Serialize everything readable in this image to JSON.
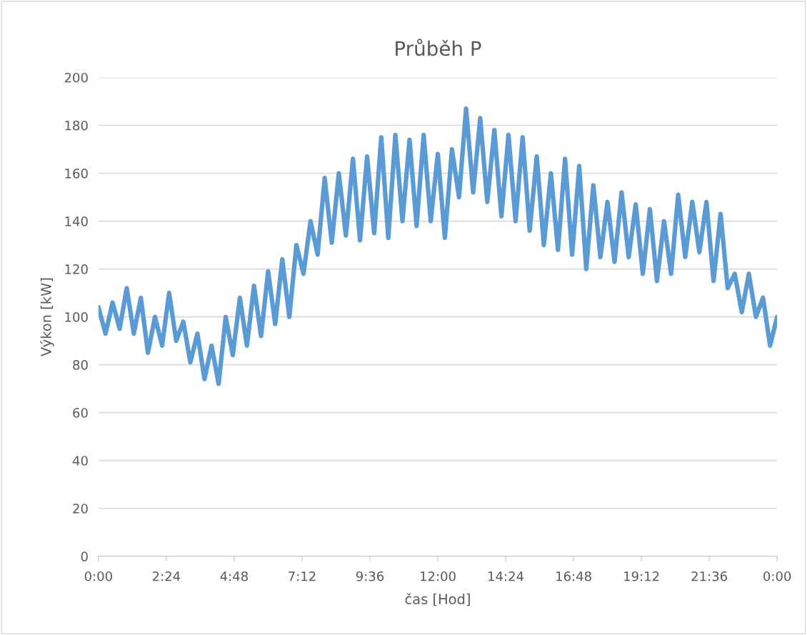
{
  "chart_data": {
    "type": "line",
    "title": "Průběh P",
    "xlabel": "čas [Hod]",
    "ylabel": "Výkon [kW]",
    "x": [
      0,
      0.25,
      0.5,
      0.75,
      1,
      1.25,
      1.5,
      1.75,
      2,
      2.25,
      2.5,
      2.75,
      3,
      3.25,
      3.5,
      3.75,
      4,
      4.25,
      4.5,
      4.75,
      5,
      5.25,
      5.5,
      5.75,
      6,
      6.25,
      6.5,
      6.75,
      7,
      7.25,
      7.5,
      7.75,
      8,
      8.25,
      8.5,
      8.75,
      9,
      9.25,
      9.5,
      9.75,
      10,
      10.25,
      10.5,
      10.75,
      11,
      11.25,
      11.5,
      11.75,
      12,
      12.25,
      12.5,
      12.75,
      13,
      13.25,
      13.5,
      13.75,
      14,
      14.25,
      14.5,
      14.75,
      15,
      15.25,
      15.5,
      15.75,
      16,
      16.25,
      16.5,
      16.75,
      17,
      17.25,
      17.5,
      17.75,
      18,
      18.25,
      18.5,
      18.75,
      19,
      19.25,
      19.5,
      19.75,
      20,
      20.25,
      20.5,
      20.75,
      21,
      21.25,
      21.5,
      21.75,
      22,
      22.25,
      22.5,
      22.75,
      23,
      23.25,
      23.5,
      23.75,
      24
    ],
    "series": [
      {
        "color": "#5b9bd5",
        "values": [
          104,
          93,
          106,
          95,
          112,
          93,
          108,
          85,
          100,
          88,
          110,
          90,
          98,
          81,
          93,
          74,
          88,
          72,
          100,
          84,
          108,
          88,
          113,
          92,
          119,
          97,
          124,
          100,
          130,
          118,
          140,
          126,
          158,
          131,
          160,
          134,
          166,
          132,
          167,
          135,
          175,
          133,
          176,
          140,
          174,
          138,
          176,
          140,
          168,
          133,
          170,
          150,
          187,
          152,
          183,
          148,
          178,
          142,
          176,
          140,
          175,
          136,
          167,
          130,
          160,
          128,
          166,
          126,
          163,
          120,
          155,
          125,
          148,
          123,
          152,
          125,
          147,
          118,
          145,
          115,
          140,
          118,
          151,
          125,
          148,
          127,
          148,
          115,
          143,
          112,
          118,
          102,
          118,
          100,
          108,
          88,
          100
        ]
      }
    ],
    "xlim": [
      0,
      24
    ],
    "xticks": [
      {
        "value": 0,
        "label": "0:00"
      },
      {
        "value": 2.4,
        "label": "2:24"
      },
      {
        "value": 4.8,
        "label": "4:48"
      },
      {
        "value": 7.2,
        "label": "7:12"
      },
      {
        "value": 9.6,
        "label": "9:36"
      },
      {
        "value": 12,
        "label": "12:00"
      },
      {
        "value": 14.4,
        "label": "14:24"
      },
      {
        "value": 16.8,
        "label": "16:48"
      },
      {
        "value": 19.2,
        "label": "19:12"
      },
      {
        "value": 21.6,
        "label": "21:36"
      },
      {
        "value": 24,
        "label": "0:00"
      }
    ],
    "ylim": [
      0,
      200
    ],
    "yticks": [
      0,
      20,
      40,
      60,
      80,
      100,
      120,
      140,
      160,
      180,
      200
    ],
    "grid": "y",
    "marker": "none",
    "line_style": "solid"
  }
}
